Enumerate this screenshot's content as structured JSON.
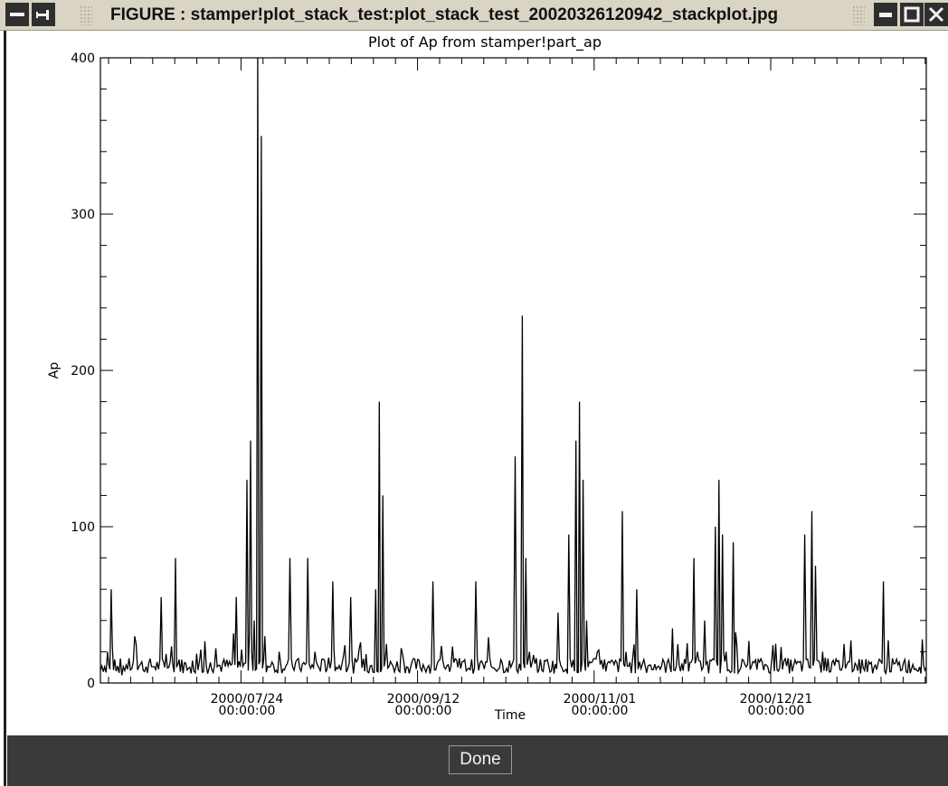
{
  "window": {
    "title": "FIGURE : stamper!plot_stack_test:plot_stack_test_20020326120942_stackplot.jpg",
    "done_label": "Done"
  },
  "chart_data": {
    "type": "line",
    "title": "Plot of Ap from stamper!part_ap",
    "xlabel": "Time",
    "ylabel": "Ap",
    "ylim": [
      0,
      400
    ],
    "y_ticks": [
      "0",
      "100",
      "200",
      "300",
      "400"
    ],
    "x_tick_labels": [
      {
        "date": "2000/07/24",
        "time": "00:00:00"
      },
      {
        "date": "2000/09/12",
        "time": "00:00:00"
      },
      {
        "date": "2000/11/01",
        "time": "00:00:00"
      },
      {
        "date": "2000/12/21",
        "time": "00:00:00"
      }
    ],
    "x_range_days_approx": [
      0,
      231
    ],
    "series": [
      {
        "values_days_from_start_and_ap": [
          [
            0,
            8
          ],
          [
            2,
            20
          ],
          [
            3,
            60
          ],
          [
            4,
            15
          ],
          [
            6,
            5
          ],
          [
            10,
            25
          ],
          [
            12,
            8
          ],
          [
            17,
            55
          ],
          [
            18,
            10
          ],
          [
            21,
            80
          ],
          [
            22,
            15
          ],
          [
            25,
            10
          ],
          [
            30,
            6
          ],
          [
            38,
            55
          ],
          [
            41,
            130
          ],
          [
            42,
            155
          ],
          [
            43,
            40
          ],
          [
            44,
            400
          ],
          [
            45,
            350
          ],
          [
            46,
            30
          ],
          [
            50,
            20
          ],
          [
            53,
            80
          ],
          [
            55,
            15
          ],
          [
            58,
            80
          ],
          [
            60,
            20
          ],
          [
            65,
            65
          ],
          [
            66,
            10
          ],
          [
            70,
            55
          ],
          [
            72,
            15
          ],
          [
            77,
            60
          ],
          [
            78,
            180
          ],
          [
            79,
            120
          ],
          [
            80,
            25
          ],
          [
            86,
            10
          ],
          [
            93,
            65
          ],
          [
            95,
            15
          ],
          [
            100,
            10
          ],
          [
            105,
            65
          ],
          [
            107,
            12
          ],
          [
            112,
            15
          ],
          [
            116,
            145
          ],
          [
            118,
            235
          ],
          [
            119,
            80
          ],
          [
            120,
            20
          ],
          [
            125,
            15
          ],
          [
            128,
            45
          ],
          [
            131,
            95
          ],
          [
            133,
            155
          ],
          [
            134,
            180
          ],
          [
            135,
            130
          ],
          [
            136,
            40
          ],
          [
            139,
            20
          ],
          [
            141,
            15
          ],
          [
            146,
            110
          ],
          [
            147,
            20
          ],
          [
            150,
            60
          ],
          [
            152,
            15
          ],
          [
            160,
            35
          ],
          [
            166,
            80
          ],
          [
            167,
            20
          ],
          [
            169,
            40
          ],
          [
            172,
            100
          ],
          [
            173,
            130
          ],
          [
            174,
            95
          ],
          [
            175,
            20
          ],
          [
            177,
            90
          ],
          [
            178,
            25
          ],
          [
            184,
            15
          ],
          [
            190,
            10
          ],
          [
            197,
            95
          ],
          [
            199,
            110
          ],
          [
            200,
            75
          ],
          [
            202,
            20
          ],
          [
            208,
            25
          ],
          [
            213,
            15
          ],
          [
            219,
            65
          ],
          [
            220,
            10
          ],
          [
            225,
            15
          ],
          [
            231,
            10
          ]
        ]
      }
    ],
    "grid": false
  }
}
